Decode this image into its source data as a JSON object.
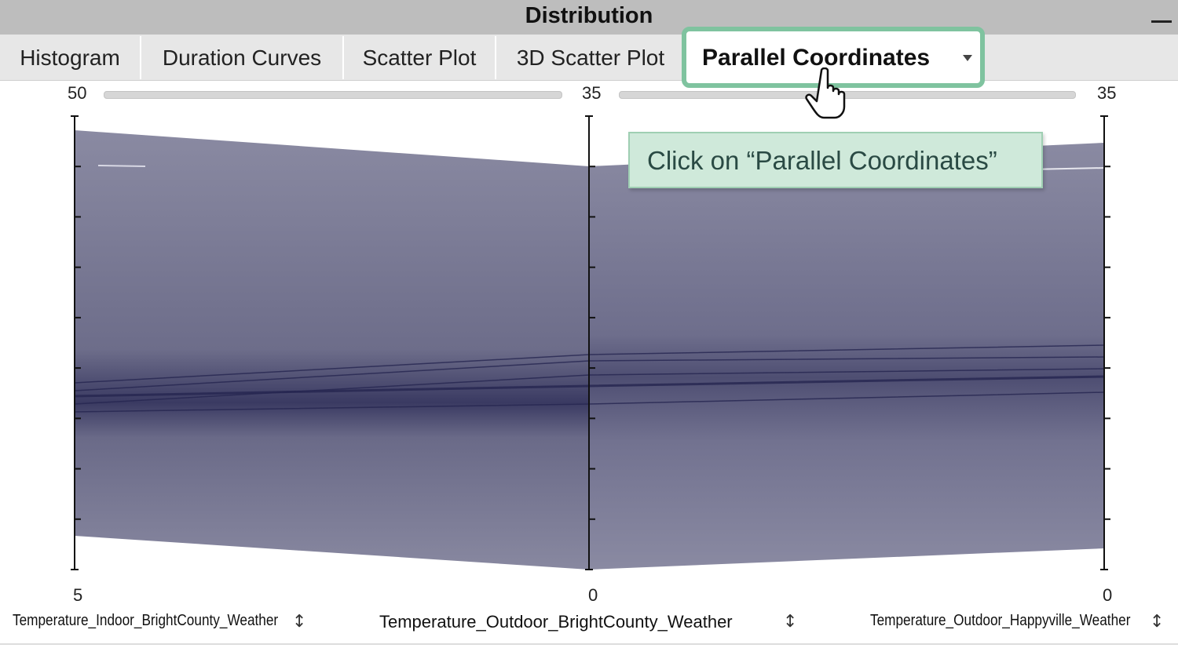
{
  "window": {
    "title": "Distribution"
  },
  "tabs": [
    {
      "label": "Histogram"
    },
    {
      "label": "Duration Curves"
    },
    {
      "label": "Scatter Plot"
    },
    {
      "label": "3D Scatter Plot"
    },
    {
      "label": "Parallel Coordinates",
      "active": true
    }
  ],
  "callout": {
    "text": "Click on “Parallel Coordinates”"
  },
  "icons": {
    "minimize": "minimize-icon",
    "dropdown": "chevron-down-icon",
    "sort": "sort-arrows-icon",
    "cursor": "hand-cursor-icon"
  },
  "colors": {
    "accent": "#7fc39f",
    "lines": "#7a7a94",
    "lines_dense": "#2a2a50"
  },
  "chart_data": {
    "type": "parallel-coordinates",
    "axes": [
      {
        "name": "Temperature_Indoor_BrightCounty_Weather",
        "min_label": "5",
        "max_label": "50",
        "min": 5,
        "max": 50
      },
      {
        "name": "Temperature_Outdoor_BrightCounty_Weather",
        "min_label": "0",
        "max_label": "35",
        "min": 0,
        "max": 35
      },
      {
        "name": "Temperature_Outdoor_Happyville_Weather",
        "min_label": "0",
        "max_label": "35",
        "min": 0,
        "max": 35
      }
    ],
    "sort_symbol": "↕"
  }
}
